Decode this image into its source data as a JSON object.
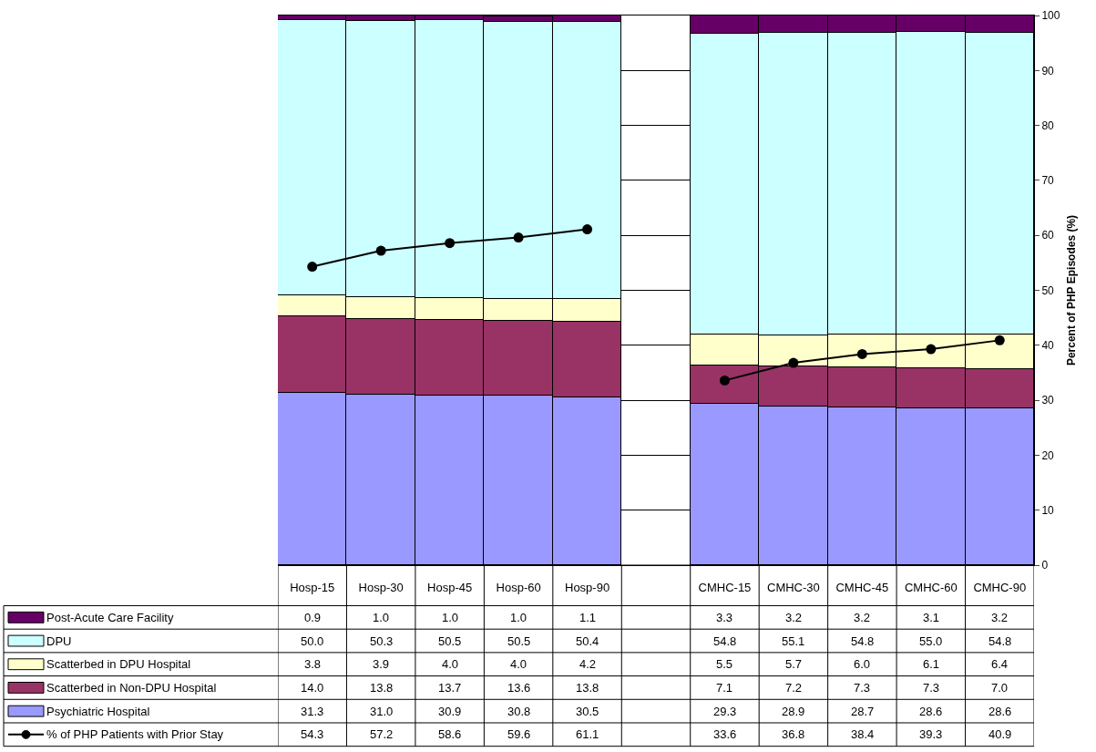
{
  "chart_data": {
    "type": "bar",
    "stacked": true,
    "ylabel": "Percent of PHP Episodes (%)",
    "categories": [
      "Hosp-15",
      "Hosp-30",
      "Hosp-45",
      "Hosp-60",
      "Hosp-90",
      null,
      "CMHC-15",
      "CMHC-30",
      "CMHC-45",
      "CMHC-60",
      "CMHC-90"
    ],
    "ylim": [
      0,
      100
    ],
    "yticks": [
      0,
      10,
      20,
      30,
      40,
      50,
      60,
      70,
      80,
      90,
      100
    ],
    "grid": "y",
    "legend": "bottom left",
    "series": [
      {
        "name": "Psychiatric Hospital",
        "color": "#9999ff",
        "values": [
          31.3,
          31.0,
          30.9,
          30.8,
          30.5,
          null,
          29.3,
          28.9,
          28.7,
          28.6,
          28.6
        ],
        "value_labels": [
          "31.3",
          "31.0",
          "30.9",
          "30.8",
          "30.5",
          null,
          "29.3",
          "28.9",
          "28.7",
          "28.6",
          "28.6"
        ]
      },
      {
        "name": "Scatterbed in Non-DPU Hospital",
        "color": "#993366",
        "values": [
          14.0,
          13.8,
          13.7,
          13.6,
          13.8,
          null,
          7.1,
          7.2,
          7.3,
          7.3,
          7.0
        ],
        "value_labels": [
          "14.0",
          "13.8",
          "13.7",
          "13.6",
          "13.8",
          null,
          "7.1",
          "7.2",
          "7.3",
          "7.3",
          "7.0"
        ]
      },
      {
        "name": "Scatterbed in DPU Hospital",
        "color": "#ffffcc",
        "values": [
          3.8,
          3.9,
          4.0,
          4.0,
          4.2,
          null,
          5.5,
          5.7,
          6.0,
          6.1,
          6.4
        ],
        "value_labels": [
          "3.8",
          "3.9",
          "4.0",
          "4.0",
          "4.2",
          null,
          "5.5",
          "5.7",
          "6.0",
          "6.1",
          "6.4"
        ]
      },
      {
        "name": "DPU",
        "color": "#ccffff",
        "values": [
          50.0,
          50.3,
          50.5,
          50.5,
          50.4,
          null,
          54.8,
          55.1,
          54.8,
          55.0,
          54.8
        ],
        "value_labels": [
          "50.0",
          "50.3",
          "50.5",
          "50.5",
          "50.4",
          null,
          "54.8",
          "55.1",
          "54.8",
          "55.0",
          "54.8"
        ]
      },
      {
        "name": "Post-Acute Care Facility",
        "color": "#660066",
        "values": [
          0.9,
          1.0,
          1.0,
          1.0,
          1.1,
          null,
          3.3,
          3.2,
          3.2,
          3.1,
          3.2
        ],
        "value_labels": [
          "0.9",
          "1.0",
          "1.0",
          "1.0",
          "1.1",
          null,
          "3.3",
          "3.2",
          "3.2",
          "3.1",
          "3.2"
        ]
      },
      {
        "name": "% of PHP Patients with Prior Stay",
        "type": "line",
        "color": "#000000",
        "marker": "circle",
        "line_style": "solid",
        "values": [
          54.3,
          57.2,
          58.6,
          59.6,
          61.1,
          null,
          33.6,
          36.8,
          38.4,
          39.3,
          40.9
        ],
        "value_labels": [
          "54.3",
          "57.2",
          "58.6",
          "59.6",
          "61.1",
          null,
          "33.6",
          "36.8",
          "38.4",
          "39.3",
          "40.9"
        ]
      }
    ]
  }
}
